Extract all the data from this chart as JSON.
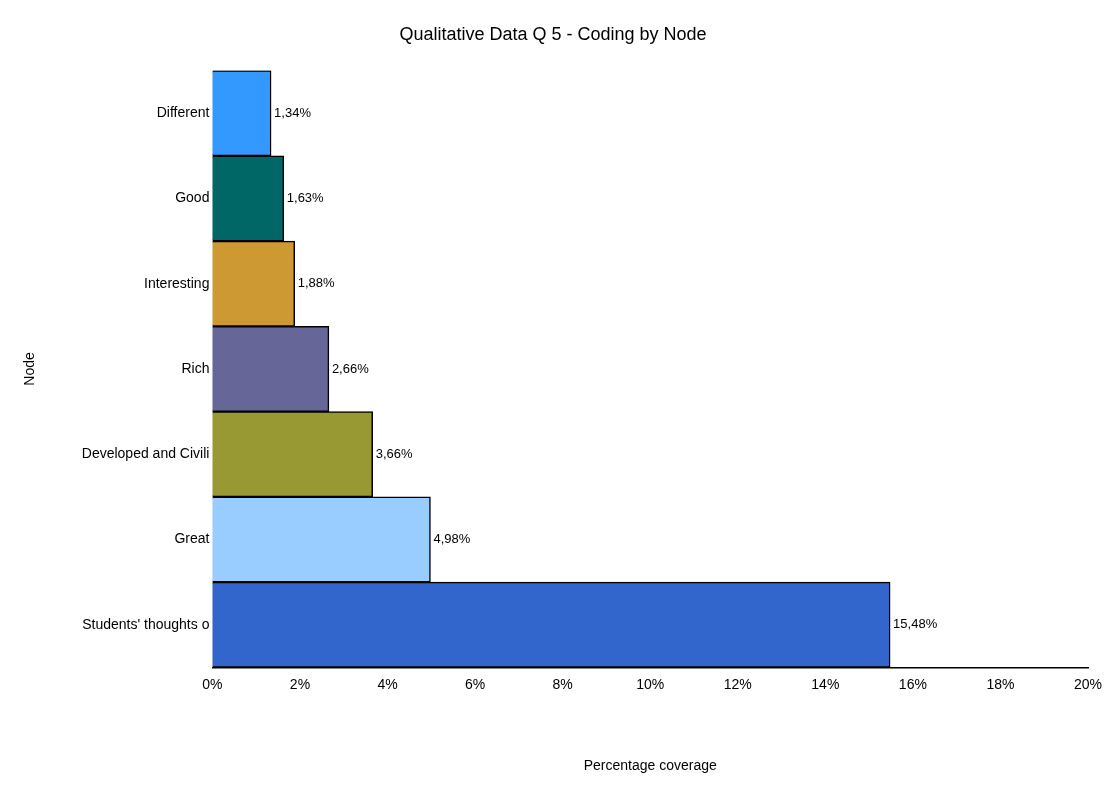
{
  "chart_data": {
    "type": "bar",
    "orientation": "horizontal",
    "title": "Qualitative Data Q 5 - Coding by Node",
    "xlabel": "Percentage coverage",
    "ylabel": "Node",
    "categories": [
      "Different",
      "Good",
      "Interesting",
      "Rich",
      "Developed and Civili",
      "Great",
      "Students' thoughts o"
    ],
    "values": [
      1.34,
      1.63,
      1.88,
      2.66,
      3.66,
      4.98,
      15.48
    ],
    "colors": [
      "#3399ff",
      "#006666",
      "#cc9933",
      "#666699",
      "#999933",
      "#99ccff",
      "#3366cc"
    ],
    "value_labels": [
      "1,34%",
      "1,63%",
      "1,88%",
      "2,66%",
      "3,66%",
      "4,98%",
      "15,48%"
    ],
    "xlim": [
      0,
      20
    ],
    "xticks": [
      {
        "value": 0,
        "label": "0%"
      },
      {
        "value": 2,
        "label": "2%"
      },
      {
        "value": 4,
        "label": "4%"
      },
      {
        "value": 6,
        "label": "6%"
      },
      {
        "value": 8,
        "label": "8%"
      },
      {
        "value": 10,
        "label": "10%"
      },
      {
        "value": 12,
        "label": "12%"
      },
      {
        "value": 14,
        "label": "14%"
      },
      {
        "value": 16,
        "label": "16%"
      },
      {
        "value": 18,
        "label": "18%"
      },
      {
        "value": 20,
        "label": "20%"
      }
    ],
    "grid": false,
    "legend": false
  }
}
